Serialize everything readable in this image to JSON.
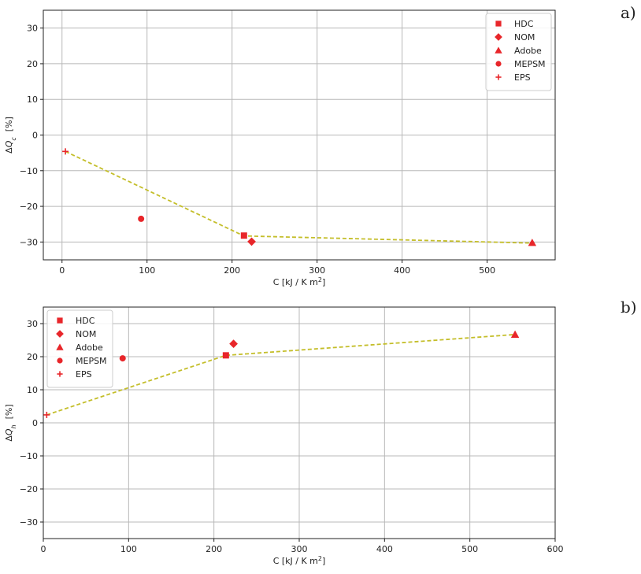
{
  "colors": {
    "marker": "#e8262a",
    "trend": "#c4be2a",
    "grid": "#b8b8b8",
    "axis": "#222222"
  },
  "chart_data": [
    {
      "type": "scatter",
      "panel_label": "a)",
      "xlabel": "C [kJ / K m²]",
      "ylabel": "ΔQc [%]",
      "ylabel_main": "ΔQ",
      "ylabel_sub": "c",
      "ylabel_unit": "[%]",
      "xlim": [
        -22,
        580
      ],
      "ylim": [
        -35,
        35
      ],
      "xticks": [
        0,
        100,
        200,
        300,
        400,
        500
      ],
      "yticks": [
        -30,
        -20,
        -10,
        0,
        10,
        20,
        30
      ],
      "grid": true,
      "legend_position": "top-right",
      "series": [
        {
          "name": "HDC",
          "marker": "square",
          "x": [
            214
          ],
          "y": [
            -28.2
          ]
        },
        {
          "name": "NOM",
          "marker": "diamond",
          "x": [
            223
          ],
          "y": [
            -29.9
          ]
        },
        {
          "name": "Adobe",
          "marker": "triangle",
          "x": [
            553
          ],
          "y": [
            -30.2
          ]
        },
        {
          "name": "MEPSM",
          "marker": "circle",
          "x": [
            93
          ],
          "y": [
            -23.5
          ]
        },
        {
          "name": "EPS",
          "marker": "plus",
          "x": [
            4
          ],
          "y": [
            -4.6
          ]
        }
      ],
      "trend_line": {
        "x": [
          4,
          214,
          553
        ],
        "y": [
          -4.6,
          -28.3,
          -30.3
        ]
      }
    },
    {
      "type": "scatter",
      "panel_label": "b)",
      "xlabel": "C [kJ / K m²]",
      "ylabel": "ΔQh [%]",
      "ylabel_main": "ΔQ",
      "ylabel_sub": "h",
      "ylabel_unit": "[%]",
      "xlim": [
        0,
        600
      ],
      "ylim": [
        -35,
        35
      ],
      "xticks": [
        0,
        100,
        200,
        300,
        400,
        500,
        600
      ],
      "yticks": [
        -30,
        -20,
        -10,
        0,
        10,
        20,
        30
      ],
      "grid": true,
      "legend_position": "top-left",
      "series": [
        {
          "name": "HDC",
          "marker": "square",
          "x": [
            214
          ],
          "y": [
            20.4
          ]
        },
        {
          "name": "NOM",
          "marker": "diamond",
          "x": [
            223
          ],
          "y": [
            23.9
          ]
        },
        {
          "name": "Adobe",
          "marker": "triangle",
          "x": [
            553
          ],
          "y": [
            26.7
          ]
        },
        {
          "name": "MEPSM",
          "marker": "circle",
          "x": [
            93
          ],
          "y": [
            19.5
          ]
        },
        {
          "name": "EPS",
          "marker": "plus",
          "x": [
            4
          ],
          "y": [
            2.4
          ]
        }
      ],
      "trend_line": {
        "x": [
          4,
          214,
          553
        ],
        "y": [
          2.4,
          20.4,
          26.7
        ]
      }
    }
  ]
}
